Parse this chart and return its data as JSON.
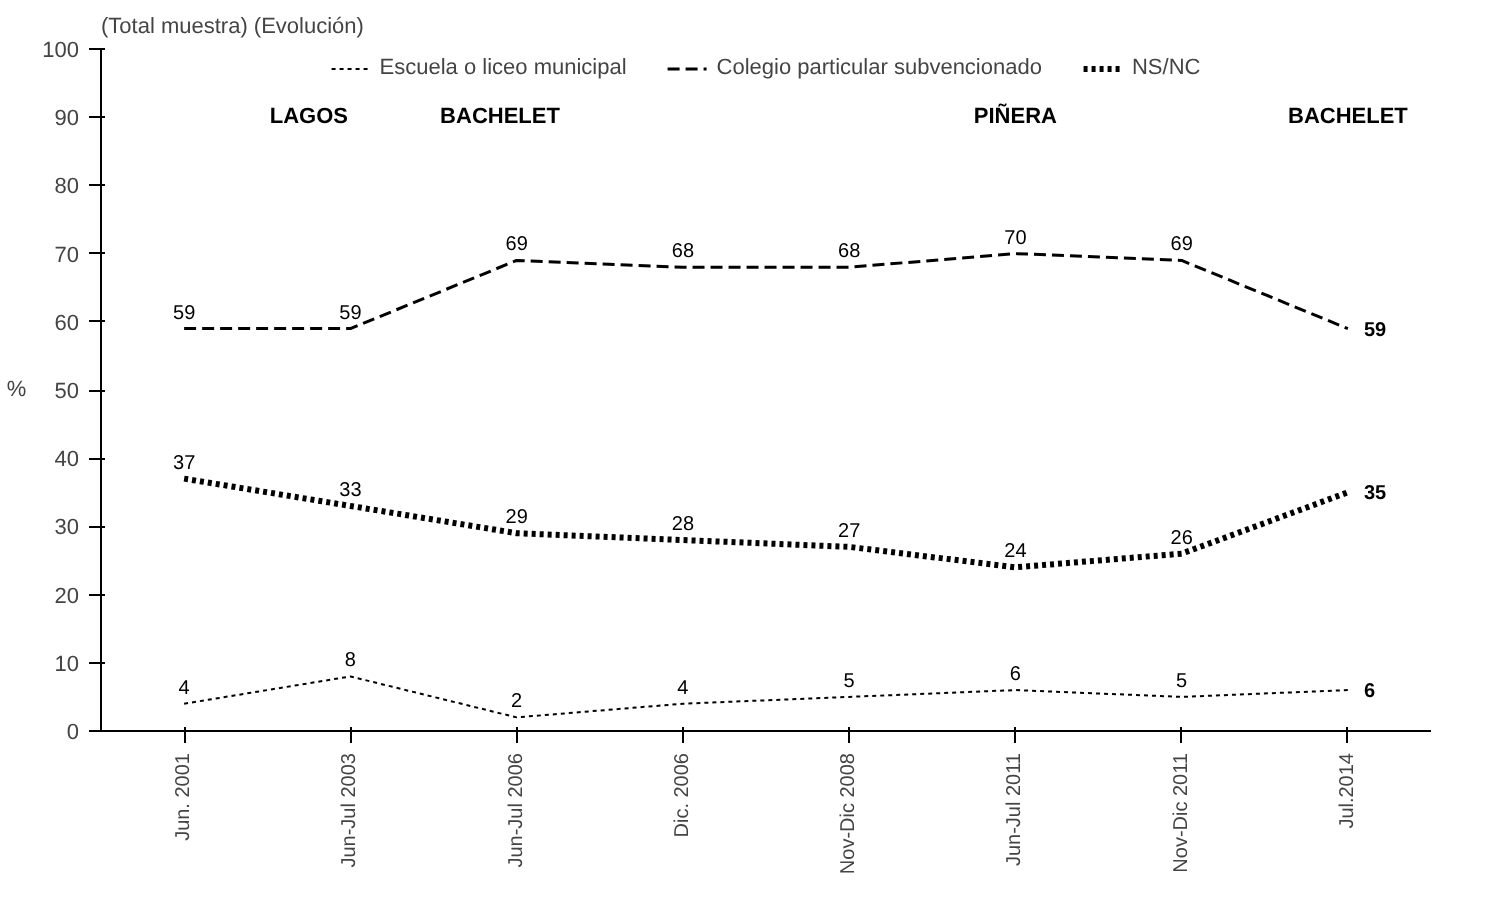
{
  "chart_data": {
    "type": "line",
    "title": "(Total muestra) (Evolución)",
    "ylabel": "%",
    "categories": [
      "Jun. 2001",
      "Jun-Jul 2003",
      "Jun-Jul 2006",
      "Dic. 2006",
      "Nov-Dic 2008",
      "Jun-Jul 2011",
      "Nov-Dic 2011",
      "Jul.2014"
    ],
    "series": [
      {
        "name": "Escuela o liceo municipal",
        "color": "#000000",
        "line_style": "dotted",
        "values": [
          4,
          8,
          2,
          4,
          5,
          6,
          5,
          6
        ]
      },
      {
        "name": "Colegio particular subvencionado",
        "color": "#000000",
        "line_style": "dashed",
        "values": [
          59,
          59,
          69,
          68,
          68,
          70,
          69,
          59
        ]
      },
      {
        "name": "NS/NC",
        "color": "#000000",
        "line_style": "dotted",
        "values": [
          37,
          33,
          29,
          28,
          27,
          24,
          26,
          35
        ]
      }
    ],
    "ylim": [
      0,
      100
    ],
    "yticks": [
      0,
      10,
      20,
      30,
      40,
      50,
      60,
      70,
      80,
      90,
      100
    ],
    "data_labels": true,
    "legend": "top",
    "grid": false,
    "annotations": [
      "LAGOS",
      "BACHELET",
      "PIÑERA",
      "BACHELET"
    ]
  }
}
